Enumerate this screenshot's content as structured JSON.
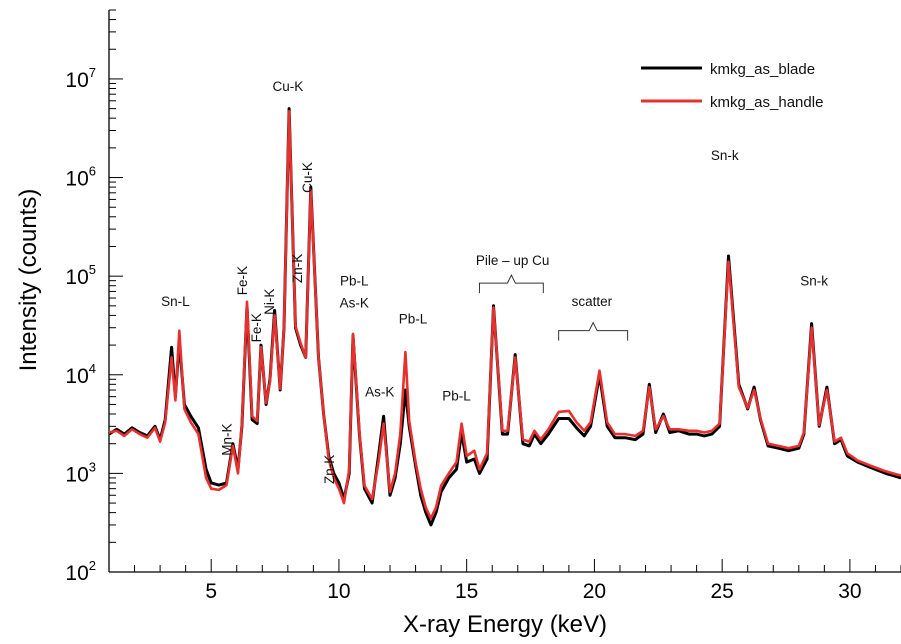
{
  "chart_data": {
    "type": "line",
    "xlabel": "X-ray Energy (keV)",
    "ylabel": "Intensity (counts)",
    "xlim": [
      1.0,
      32.0
    ],
    "ylim": [
      100,
      50000000
    ],
    "yscale": "log",
    "grid": false,
    "legend_position": "top-right",
    "x_ticks": [
      5,
      10,
      15,
      20,
      25,
      30
    ],
    "x_tick_labels": [
      "5",
      "10",
      "15",
      "20",
      "25",
      "30"
    ],
    "y_ticks": [
      100,
      1000,
      10000,
      100000,
      1000000,
      10000000
    ],
    "y_tick_labels": [
      {
        "base": "10",
        "exp": "2"
      },
      {
        "base": "10",
        "exp": "3"
      },
      {
        "base": "10",
        "exp": "4"
      },
      {
        "base": "10",
        "exp": "5"
      },
      {
        "base": "10",
        "exp": "6"
      },
      {
        "base": "10",
        "exp": "7"
      }
    ],
    "series": [
      {
        "name": "kmkg_as_blade",
        "color": "#000000",
        "points": [
          [
            1.0,
            2500
          ],
          [
            1.3,
            2800
          ],
          [
            1.6,
            2500
          ],
          [
            1.9,
            2900
          ],
          [
            2.2,
            2600
          ],
          [
            2.5,
            2400
          ],
          [
            2.8,
            3000
          ],
          [
            3.0,
            2200
          ],
          [
            3.2,
            3500
          ],
          [
            3.45,
            19000
          ],
          [
            3.6,
            6000
          ],
          [
            3.75,
            22000
          ],
          [
            3.95,
            5000
          ],
          [
            4.2,
            3800
          ],
          [
            4.5,
            2900
          ],
          [
            4.8,
            1100
          ],
          [
            5.0,
            800
          ],
          [
            5.3,
            760
          ],
          [
            5.6,
            800
          ],
          [
            5.85,
            2000
          ],
          [
            6.05,
            1100
          ],
          [
            6.2,
            3000
          ],
          [
            6.4,
            50000
          ],
          [
            6.6,
            3500
          ],
          [
            6.8,
            3200
          ],
          [
            6.95,
            20000
          ],
          [
            7.15,
            5000
          ],
          [
            7.3,
            9000
          ],
          [
            7.48,
            45000
          ],
          [
            7.7,
            7000
          ],
          [
            7.85,
            30000
          ],
          [
            8.05,
            5000000
          ],
          [
            8.3,
            30000
          ],
          [
            8.5,
            20000
          ],
          [
            8.7,
            15000
          ],
          [
            8.9,
            800000
          ],
          [
            9.2,
            15000
          ],
          [
            9.4,
            4000
          ],
          [
            9.6,
            1500
          ],
          [
            9.8,
            1000
          ],
          [
            10.0,
            800
          ],
          [
            10.2,
            550
          ],
          [
            10.4,
            1000
          ],
          [
            10.55,
            25000
          ],
          [
            10.8,
            2500
          ],
          [
            11.0,
            700
          ],
          [
            11.3,
            500
          ],
          [
            11.55,
            1500
          ],
          [
            11.75,
            3800
          ],
          [
            12.0,
            600
          ],
          [
            12.2,
            900
          ],
          [
            12.4,
            2000
          ],
          [
            12.6,
            7000
          ],
          [
            12.75,
            3000
          ],
          [
            13.0,
            1200
          ],
          [
            13.2,
            600
          ],
          [
            13.4,
            400
          ],
          [
            13.6,
            300
          ],
          [
            13.8,
            400
          ],
          [
            14.0,
            650
          ],
          [
            14.3,
            900
          ],
          [
            14.6,
            1100
          ],
          [
            14.8,
            2600
          ],
          [
            15.0,
            1300
          ],
          [
            15.3,
            1400
          ],
          [
            15.5,
            1000
          ],
          [
            15.8,
            1400
          ],
          [
            16.05,
            50000
          ],
          [
            16.4,
            2500
          ],
          [
            16.6,
            2500
          ],
          [
            16.9,
            16000
          ],
          [
            17.2,
            2000
          ],
          [
            17.45,
            1900
          ],
          [
            17.65,
            2500
          ],
          [
            17.9,
            2000
          ],
          [
            18.2,
            2500
          ],
          [
            18.6,
            3600
          ],
          [
            19.0,
            3600
          ],
          [
            19.3,
            2900
          ],
          [
            19.6,
            2400
          ],
          [
            19.85,
            3000
          ],
          [
            20.2,
            10000
          ],
          [
            20.5,
            3000
          ],
          [
            20.8,
            2300
          ],
          [
            21.2,
            2300
          ],
          [
            21.6,
            2200
          ],
          [
            21.9,
            2500
          ],
          [
            22.15,
            8000
          ],
          [
            22.4,
            2600
          ],
          [
            22.7,
            4000
          ],
          [
            22.95,
            2600
          ],
          [
            23.3,
            2700
          ],
          [
            23.7,
            2500
          ],
          [
            24.0,
            2500
          ],
          [
            24.3,
            2400
          ],
          [
            24.6,
            2500
          ],
          [
            24.9,
            3000
          ],
          [
            25.25,
            160000
          ],
          [
            25.65,
            8000
          ],
          [
            26.0,
            4500
          ],
          [
            26.25,
            7500
          ],
          [
            26.5,
            3500
          ],
          [
            26.8,
            1900
          ],
          [
            27.2,
            1800
          ],
          [
            27.6,
            1700
          ],
          [
            28.0,
            1800
          ],
          [
            28.2,
            2500
          ],
          [
            28.5,
            33000
          ],
          [
            28.8,
            3000
          ],
          [
            29.1,
            7500
          ],
          [
            29.4,
            2000
          ],
          [
            29.65,
            2200
          ],
          [
            29.9,
            1500
          ],
          [
            30.3,
            1300
          ],
          [
            30.8,
            1150
          ],
          [
            31.4,
            1000
          ],
          [
            32.0,
            900
          ]
        ]
      },
      {
        "name": "kmkg_as_handle",
        "color": "#e8302e",
        "points": [
          [
            1.0,
            2600
          ],
          [
            1.3,
            2700
          ],
          [
            1.6,
            2400
          ],
          [
            1.9,
            2800
          ],
          [
            2.2,
            2500
          ],
          [
            2.5,
            2300
          ],
          [
            2.8,
            2900
          ],
          [
            3.0,
            2100
          ],
          [
            3.2,
            3300
          ],
          [
            3.45,
            15000
          ],
          [
            3.6,
            5500
          ],
          [
            3.75,
            28000
          ],
          [
            3.95,
            4500
          ],
          [
            4.2,
            3300
          ],
          [
            4.5,
            2500
          ],
          [
            4.8,
            900
          ],
          [
            5.0,
            700
          ],
          [
            5.3,
            680
          ],
          [
            5.6,
            760
          ],
          [
            5.85,
            1900
          ],
          [
            6.05,
            1000
          ],
          [
            6.2,
            3200
          ],
          [
            6.4,
            55000
          ],
          [
            6.6,
            3800
          ],
          [
            6.8,
            3400
          ],
          [
            6.95,
            19000
          ],
          [
            7.15,
            5200
          ],
          [
            7.3,
            8500
          ],
          [
            7.48,
            40000
          ],
          [
            7.7,
            7200
          ],
          [
            7.85,
            31000
          ],
          [
            8.05,
            4700000
          ],
          [
            8.3,
            31000
          ],
          [
            8.5,
            21000
          ],
          [
            8.7,
            15000
          ],
          [
            8.9,
            750000
          ],
          [
            9.2,
            15000
          ],
          [
            9.4,
            4000
          ],
          [
            9.6,
            1400
          ],
          [
            9.8,
            900
          ],
          [
            10.0,
            700
          ],
          [
            10.2,
            500
          ],
          [
            10.4,
            1100
          ],
          [
            10.55,
            26000
          ],
          [
            10.8,
            2600
          ],
          [
            11.0,
            750
          ],
          [
            11.3,
            550
          ],
          [
            11.55,
            1300
          ],
          [
            11.75,
            3200
          ],
          [
            12.0,
            650
          ],
          [
            12.2,
            1000
          ],
          [
            12.4,
            2500
          ],
          [
            12.6,
            17000
          ],
          [
            12.75,
            3400
          ],
          [
            13.0,
            1300
          ],
          [
            13.2,
            700
          ],
          [
            13.4,
            450
          ],
          [
            13.6,
            350
          ],
          [
            13.8,
            450
          ],
          [
            14.0,
            750
          ],
          [
            14.3,
            1000
          ],
          [
            14.6,
            1300
          ],
          [
            14.8,
            3200
          ],
          [
            15.0,
            1500
          ],
          [
            15.3,
            1700
          ],
          [
            15.5,
            1100
          ],
          [
            15.8,
            1600
          ],
          [
            16.05,
            48000
          ],
          [
            16.4,
            2700
          ],
          [
            16.6,
            2700
          ],
          [
            16.9,
            15000
          ],
          [
            17.2,
            2200
          ],
          [
            17.45,
            2100
          ],
          [
            17.65,
            2700
          ],
          [
            17.9,
            2200
          ],
          [
            18.2,
            2800
          ],
          [
            18.6,
            4200
          ],
          [
            19.0,
            4300
          ],
          [
            19.3,
            3300
          ],
          [
            19.6,
            2700
          ],
          [
            19.85,
            3300
          ],
          [
            20.2,
            11000
          ],
          [
            20.5,
            3300
          ],
          [
            20.8,
            2500
          ],
          [
            21.2,
            2500
          ],
          [
            21.6,
            2400
          ],
          [
            21.9,
            2700
          ],
          [
            22.15,
            7500
          ],
          [
            22.4,
            2800
          ],
          [
            22.7,
            3800
          ],
          [
            22.95,
            2800
          ],
          [
            23.3,
            2800
          ],
          [
            23.7,
            2700
          ],
          [
            24.0,
            2700
          ],
          [
            24.3,
            2600
          ],
          [
            24.6,
            2700
          ],
          [
            24.9,
            3200
          ],
          [
            25.25,
            140000
          ],
          [
            25.65,
            7500
          ],
          [
            26.0,
            4600
          ],
          [
            26.25,
            7000
          ],
          [
            26.5,
            3600
          ],
          [
            26.8,
            2000
          ],
          [
            27.2,
            1900
          ],
          [
            27.6,
            1800
          ],
          [
            28.0,
            1900
          ],
          [
            28.2,
            2600
          ],
          [
            28.5,
            30000
          ],
          [
            28.8,
            3100
          ],
          [
            29.1,
            7000
          ],
          [
            29.4,
            2100
          ],
          [
            29.65,
            2300
          ],
          [
            29.9,
            1600
          ],
          [
            30.3,
            1350
          ],
          [
            30.8,
            1200
          ],
          [
            31.4,
            1050
          ],
          [
            32.0,
            950
          ]
        ]
      }
    ],
    "annotations": [
      {
        "text": "Sn-L",
        "x": 3.6,
        "y": 50000,
        "rotate": 0
      },
      {
        "text": "Mn-K",
        "x": 5.8,
        "y": 2200,
        "rotate": -90
      },
      {
        "text": "Fe-K",
        "x": 6.4,
        "y": 90000,
        "rotate": -90
      },
      {
        "text": "Fe-K",
        "x": 6.95,
        "y": 30000,
        "rotate": -90
      },
      {
        "text": "Ni-K",
        "x": 7.45,
        "y": 55000,
        "rotate": -90
      },
      {
        "text": "Cu-K",
        "x": 8.0,
        "y": 7500000,
        "rotate": 0
      },
      {
        "text": "Zn-K",
        "x": 8.55,
        "y": 120000,
        "rotate": -90
      },
      {
        "text": "Cu-K",
        "x": 8.95,
        "y": 1000000,
        "rotate": -90
      },
      {
        "text": "Zn-K",
        "x": 9.8,
        "y": 1100,
        "rotate": -90
      },
      {
        "text": "Pb-L",
        "x": 10.6,
        "y": 80000,
        "rotate": 0
      },
      {
        "text": "As-K",
        "x": 10.6,
        "y": 48000,
        "rotate": 0
      },
      {
        "text": "As-K",
        "x": 11.6,
        "y": 6000,
        "rotate": 0
      },
      {
        "text": "Pb-L",
        "x": 12.9,
        "y": 33000,
        "rotate": 0
      },
      {
        "text": "Pb-L",
        "x": 14.6,
        "y": 5500,
        "rotate": 0
      },
      {
        "text": "Pile – up Cu",
        "x": 16.8,
        "y": 130000,
        "rotate": 0
      },
      {
        "text": "scatter",
        "x": 19.9,
        "y": 50000,
        "rotate": 0
      },
      {
        "text": "Sn-k",
        "x": 25.1,
        "y": 1500000,
        "rotate": 0
      },
      {
        "text": "Sn-k",
        "x": 28.6,
        "y": 80000,
        "rotate": 0
      }
    ],
    "brackets": [
      {
        "x1": 15.5,
        "x2": 18.0,
        "y": 85000
      },
      {
        "x1": 18.6,
        "x2": 21.3,
        "y": 28000
      }
    ]
  }
}
